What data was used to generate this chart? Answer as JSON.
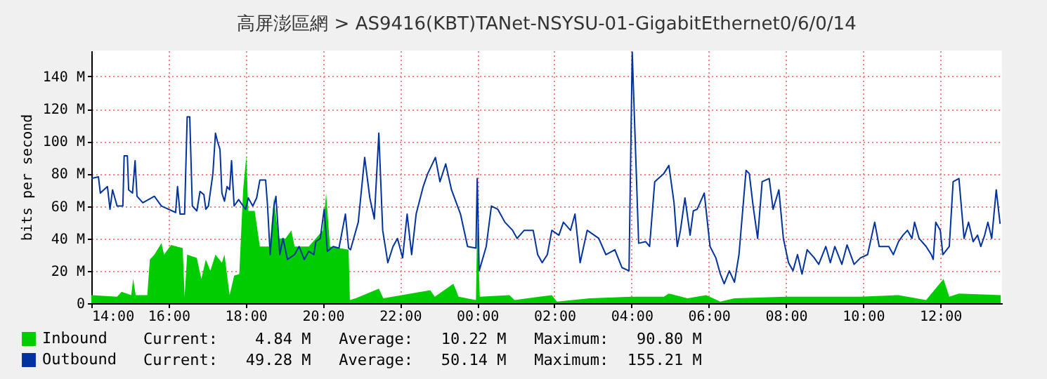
{
  "chart_data": {
    "type": "line",
    "title": "高屏澎區網 > AS9416(KBT)TANet-NSYSU-01-GigabitEthernet0/6/0/14",
    "ylabel": "bits per second",
    "xlim": [
      "--01-01T14:00",
      "--01-02T13:36"
    ],
    "ylim": [
      0,
      156
    ],
    "xticks": [
      {
        "value": "--01-01T14:00",
        "label": "14:00"
      },
      {
        "value": "--01-01T16:00",
        "label": "16:00"
      },
      {
        "value": "--01-01T18:00",
        "label": "18:00"
      },
      {
        "value": "--01-01T20:00",
        "label": "20:00"
      },
      {
        "value": "--01-01T22:00",
        "label": "22:00"
      },
      {
        "value": "--01-02T00:00",
        "label": "00:00"
      },
      {
        "value": "--01-02T02:00",
        "label": "02:00"
      },
      {
        "value": "--01-02T04:00",
        "label": "04:00"
      },
      {
        "value": "--01-02T06:00",
        "label": "06:00"
      },
      {
        "value": "--01-02T08:00",
        "label": "08:00"
      },
      {
        "value": "--01-02T10:00",
        "label": "10:00"
      },
      {
        "value": "--01-02T12:00",
        "label": "12:00"
      }
    ],
    "yticks": [
      {
        "value": 0,
        "label": "0"
      },
      {
        "value": 20,
        "label": "20 M"
      },
      {
        "value": 40,
        "label": "40 M"
      },
      {
        "value": 60,
        "label": "60 M"
      },
      {
        "value": 80,
        "label": "80 M"
      },
      {
        "value": 100,
        "label": "100 M"
      },
      {
        "value": 120,
        "label": "120 M"
      },
      {
        "value": 140,
        "label": "140 M"
      }
    ],
    "grid": true,
    "legend": "bottom",
    "annotations": [
      "Current:    4.84 M   Average:   10.22 M   Maximum:   90.80 M",
      "Current:   49.28 M   Average:   50.14 M   Maximum:  155.21 M"
    ],
    "series": [
      {
        "name": "Inbound",
        "type": "area",
        "color": "#00cc00",
        "x": [
          "--01-01T14:00",
          "--01-01T14:40",
          "--01-01T14:47",
          "--01-01T15:02",
          "--01-01T15:05",
          "--01-01T15:09",
          "--01-01T15:27",
          "--01-01T15:31",
          "--01-01T15:38",
          "--01-01T15:49",
          "--01-01T15:53",
          "--01-01T16:04",
          "--01-01T16:22",
          "--01-01T16:25",
          "--01-01T16:29",
          "--01-01T16:44",
          "--01-01T16:51",
          "--01-01T16:58",
          "--01-01T17:05",
          "--01-01T17:13",
          "--01-01T17:23",
          "--01-01T17:27",
          "--01-01T17:35",
          "--01-01T17:42",
          "--01-01T17:50",
          "--01-01T17:56",
          "--01-01T18:01",
          "--01-01T18:04",
          "--01-01T18:14",
          "--01-01T18:22",
          "--01-01T18:37",
          "--01-01T18:44",
          "--01-01T18:51",
          "--01-01T19:02",
          "--01-01T19:11",
          "--01-01T19:16",
          "--01-01T19:38",
          "--01-01T20:00",
          "--01-01T20:05",
          "--01-01T20:11",
          "--01-01T20:40",
          "--01-01T20:42",
          "--01-01T20:51",
          "--01-01T21:27",
          "--01-01T21:34",
          "--01-01T22:47",
          "--01-01T22:54",
          "--01-01T23:23",
          "--01-01T23:31",
          "--01-01T23:58",
          "--01-02T00:00",
          "--01-02T00:04",
          "--01-02T00:50",
          "--01-02T00:58",
          "--01-02T01:56",
          "--01-02T02:04",
          "--01-02T02:55",
          "--01-02T04:00",
          "--01-02T04:50",
          "--01-02T04:58",
          "--01-02T05:27",
          "--01-02T05:56",
          "--01-02T06:18",
          "--01-02T06:40",
          "--01-02T08:00",
          "--01-02T08:58",
          "--01-02T09:56",
          "--01-02T10:55",
          "--01-02T11:38",
          "--01-02T12:05",
          "--01-02T12:14",
          "--01-02T12:29",
          "--01-02T13:34"
        ],
        "values": [
          5,
          4,
          7,
          5,
          15,
          5,
          5,
          27,
          30,
          37,
          30,
          36,
          34,
          4,
          30,
          28,
          15,
          27,
          20,
          30,
          25,
          30,
          5,
          17,
          18,
          70,
          91,
          57,
          57,
          35,
          35,
          65,
          40,
          40,
          45,
          35,
          35,
          45,
          68,
          35,
          33,
          2,
          3,
          9,
          3,
          8,
          4,
          12,
          4,
          2,
          50,
          4,
          5,
          2,
          5,
          1,
          3,
          4,
          4,
          6,
          3,
          5,
          1,
          3,
          4,
          4,
          4,
          5,
          2,
          15,
          4,
          6,
          5
        ]
      },
      {
        "name": "Outbound",
        "type": "line",
        "color": "#0033a0",
        "x": [
          "--01-01T14:00",
          "--01-01T14:11",
          "--01-01T14:14",
          "--01-01T14:25",
          "--01-01T14:29",
          "--01-01T14:33",
          "--01-01T14:40",
          "--01-01T14:49",
          "--01-01T14:51",
          "--01-01T14:56",
          "--01-01T14:58",
          "--01-01T15:04",
          "--01-01T15:08",
          "--01-01T15:11",
          "--01-01T15:20",
          "--01-01T15:38",
          "--01-01T15:49",
          "--01-01T16:00",
          "--01-01T16:11",
          "--01-01T16:14",
          "--01-01T16:18",
          "--01-01T16:25",
          "--01-01T16:29",
          "--01-01T16:33",
          "--01-01T16:37",
          "--01-01T16:44",
          "--01-01T16:49",
          "--01-01T16:55",
          "--01-01T16:58",
          "--01-01T17:02",
          "--01-01T17:09",
          "--01-01T17:13",
          "--01-01T17:16",
          "--01-01T17:20",
          "--01-01T17:23",
          "--01-01T17:27",
          "--01-01T17:31",
          "--01-01T17:35",
          "--01-01T17:38",
          "--01-01T17:42",
          "--01-01T17:49",
          "--01-01T17:56",
          "--01-01T18:00",
          "--01-01T18:04",
          "--01-01T18:11",
          "--01-01T18:17",
          "--01-01T18:22",
          "--01-01T18:31",
          "--01-01T18:34",
          "--01-01T18:38",
          "--01-01T18:44",
          "--01-01T18:47",
          "--01-01T18:53",
          "--01-01T18:58",
          "--01-01T19:05",
          "--01-01T19:16",
          "--01-01T19:23",
          "--01-01T19:31",
          "--01-01T19:38",
          "--01-01T19:46",
          "--01-01T19:49",
          "--01-01T19:56",
          "--01-01T20:02",
          "--01-01T20:07",
          "--01-01T20:16",
          "--01-01T20:25",
          "--01-01T20:35",
          "--01-01T20:40",
          "--01-01T20:43",
          "--01-01T20:55",
          "--01-01T21:05",
          "--01-01T21:13",
          "--01-01T21:20",
          "--01-01T21:27",
          "--01-01T21:33",
          "--01-01T21:41",
          "--01-01T21:49",
          "--01-01T21:56",
          "--01-01T22:04",
          "--01-01T22:11",
          "--01-01T22:18",
          "--01-01T22:25",
          "--01-01T22:36",
          "--01-01T22:43",
          "--01-01T22:55",
          "--01-01T23:02",
          "--01-01T23:11",
          "--01-01T23:20",
          "--01-01T23:34",
          "--01-01T23:45",
          "--01-01T23:58",
          "--01-02T00:00",
          "--01-02T00:03",
          "--01-02T00:14",
          "--01-02T00:22",
          "--01-02T00:32",
          "--01-02T00:43",
          "--01-02T00:55",
          "--01-02T01:02",
          "--01-02T01:13",
          "--01-02T01:27",
          "--01-02T01:34",
          "--01-02T01:41",
          "--01-02T01:49",
          "--01-02T01:56",
          "--01-02T02:07",
          "--01-02T02:14",
          "--01-02T02:25",
          "--01-02T02:32",
          "--01-02T02:40",
          "--01-02T02:51",
          "--01-02T03:09",
          "--01-02T03:20",
          "--01-02T03:34",
          "--01-02T03:45",
          "--01-02T03:56",
          "--01-02T04:01",
          "--01-02T04:11",
          "--01-02T04:22",
          "--01-02T04:28",
          "--01-02T04:36",
          "--01-02T04:50",
          "--01-02T04:58",
          "--01-02T05:06",
          "--01-02T05:11",
          "--01-02T05:16",
          "--01-02T05:23",
          "--01-02T05:31",
          "--01-02T05:36",
          "--01-02T05:42",
          "--01-02T05:53",
          "--01-02T06:02",
          "--01-02T06:11",
          "--01-02T06:18",
          "--01-02T06:24",
          "--01-02T06:32",
          "--01-02T06:40",
          "--01-02T06:47",
          "--01-02T06:58",
          "--01-02T07:03",
          "--01-02T07:09",
          "--01-02T07:16",
          "--01-02T07:23",
          "--01-02T07:34",
          "--01-02T07:40",
          "--01-02T07:49",
          "--01-02T07:56",
          "--01-02T08:04",
          "--01-02T08:11",
          "--01-02T08:18",
          "--01-02T08:25",
          "--01-02T08:33",
          "--01-02T08:44",
          "--01-02T08:51",
          "--01-02T09:02",
          "--01-02T09:09",
          "--01-02T09:16",
          "--01-02T09:27",
          "--01-02T09:35",
          "--01-02T09:46",
          "--01-02T09:56",
          "--01-02T10:07",
          "--01-02T10:18",
          "--01-02T10:25",
          "--01-02T10:40",
          "--01-02T10:47",
          "--01-02T10:55",
          "--01-02T11:02",
          "--01-02T11:09",
          "--01-02T11:16",
          "--01-02T11:20",
          "--01-02T11:27",
          "--01-02T11:38",
          "--01-02T11:46",
          "--01-02T11:49",
          "--01-02T11:53",
          "--01-02T12:00",
          "--01-02T12:04",
          "--01-02T12:14",
          "--01-02T12:20",
          "--01-02T12:29",
          "--01-02T12:37",
          "--01-02T12:44",
          "--01-02T12:51",
          "--01-02T12:58",
          "--01-02T13:03",
          "--01-02T13:09",
          "--01-02T13:14",
          "--01-02T13:20",
          "--01-02T13:27",
          "--01-02T13:33"
        ],
        "values": [
          77,
          78,
          68,
          72,
          58,
          70,
          60,
          60,
          91,
          91,
          70,
          68,
          88,
          66,
          62,
          66,
          60,
          58,
          56,
          72,
          55,
          55,
          115,
          115,
          60,
          57,
          69,
          67,
          58,
          60,
          80,
          105,
          100,
          95,
          68,
          63,
          72,
          70,
          88,
          60,
          64,
          60,
          58,
          65,
          60,
          65,
          76,
          76,
          60,
          30,
          60,
          66,
          30,
          40,
          27,
          30,
          35,
          27,
          32,
          30,
          38,
          40,
          58,
          32,
          35,
          34,
          55,
          34,
          33,
          50,
          90,
          65,
          52,
          105,
          45,
          25,
          35,
          40,
          28,
          55,
          30,
          55,
          72,
          80,
          90,
          75,
          86,
          70,
          55,
          35,
          34,
          77,
          20,
          35,
          60,
          58,
          50,
          45,
          40,
          45,
          45,
          30,
          25,
          30,
          45,
          42,
          50,
          45,
          55,
          25,
          45,
          40,
          30,
          33,
          22,
          20,
          155,
          37,
          38,
          35,
          75,
          80,
          85,
          62,
          35,
          45,
          65,
          42,
          57,
          58,
          68,
          35,
          28,
          18,
          12,
          20,
          13,
          30,
          82,
          80,
          60,
          40,
          75,
          77,
          58,
          70,
          40,
          25,
          20,
          30,
          18,
          33,
          28,
          24,
          35,
          25,
          35,
          24,
          36,
          24,
          28,
          30,
          50,
          35,
          35,
          30,
          38,
          42,
          45,
          40,
          50,
          40,
          35,
          30,
          27,
          50,
          45,
          30,
          35,
          75,
          77,
          40,
          50,
          38,
          42,
          35,
          42,
          50,
          40,
          70,
          49
        ]
      }
    ]
  }
}
